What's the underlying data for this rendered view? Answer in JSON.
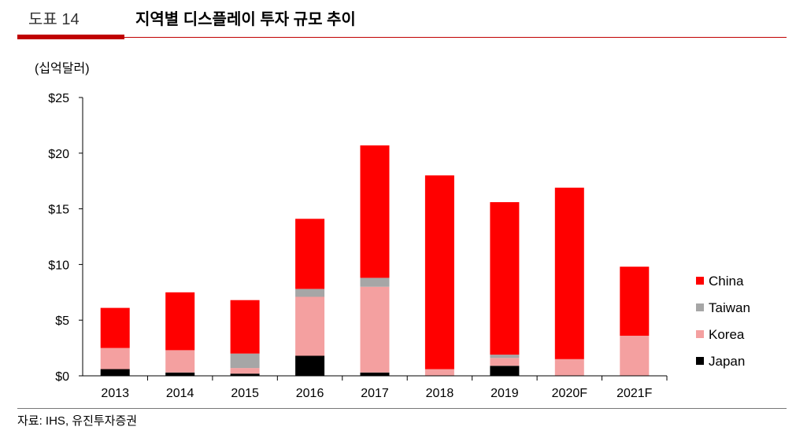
{
  "header": {
    "figure_number": "도표 14",
    "title": "지역별 디스플레이 투자 규모 추이"
  },
  "unit_label": "(십억달러)",
  "source": "자료: IHS, 유진투자증권",
  "colors": {
    "China": "#ff0000",
    "Taiwan": "#a6a6a6",
    "Korea": "#f4a0a0",
    "Japan": "#000000",
    "accent": "#c00000"
  },
  "chart_data": {
    "type": "bar",
    "stacked": true,
    "categories": [
      "2013",
      "2014",
      "2015",
      "2016",
      "2017",
      "2018",
      "2019",
      "2020F",
      "2021F"
    ],
    "series": [
      {
        "name": "Japan",
        "values": [
          0.6,
          0.3,
          0.2,
          1.8,
          0.3,
          0.0,
          0.9,
          0.0,
          0.0
        ]
      },
      {
        "name": "Korea",
        "values": [
          1.9,
          2.0,
          0.5,
          5.3,
          7.7,
          0.6,
          0.7,
          1.5,
          3.6
        ]
      },
      {
        "name": "Taiwan",
        "values": [
          0.0,
          0.0,
          1.3,
          0.7,
          0.8,
          0.0,
          0.3,
          0.0,
          0.0
        ]
      },
      {
        "name": "China",
        "values": [
          3.6,
          5.2,
          4.8,
          6.3,
          11.9,
          17.4,
          13.7,
          15.4,
          6.2
        ]
      }
    ],
    "ylim": [
      0,
      25
    ],
    "yticks": [
      0,
      5,
      10,
      15,
      20,
      25
    ],
    "ytick_labels": [
      "$0",
      "$5",
      "$10",
      "$15",
      "$20",
      "$25"
    ],
    "legend": [
      "China",
      "Taiwan",
      "Korea",
      "Japan"
    ],
    "legend_position": "right",
    "grid": false
  }
}
